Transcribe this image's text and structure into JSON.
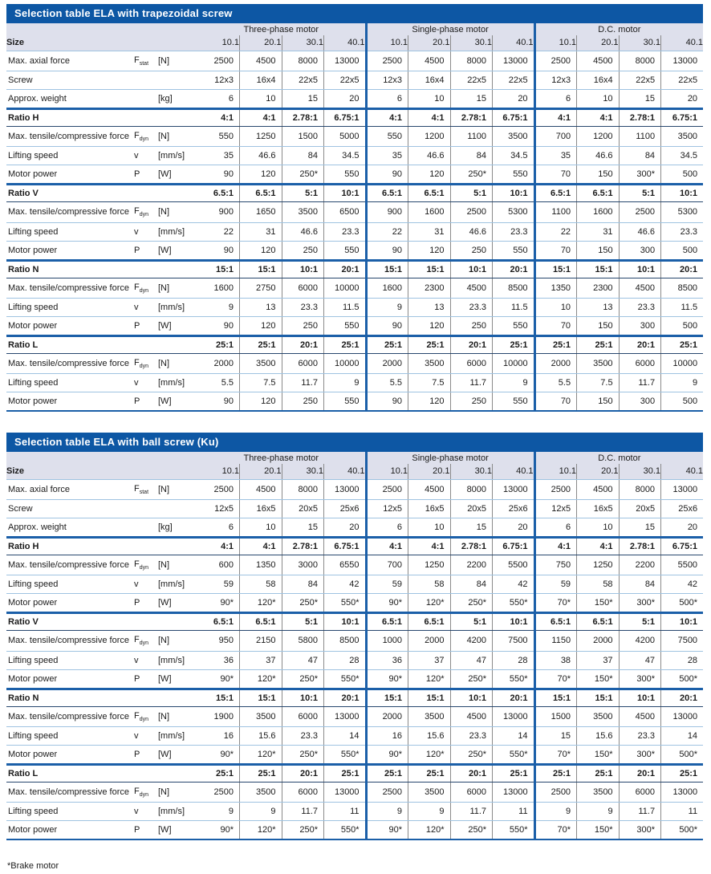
{
  "colors": {
    "title_bar": "#0d57a4",
    "header_band": "#dee0ec",
    "group_separator": "#1b5fa8",
    "row_line": "#9fc3e1",
    "ratio_line": "#27476e",
    "text": "#1b1b1b"
  },
  "footnote": "*Brake motor",
  "size_label": "Size",
  "tables": [
    {
      "title": "Selection table ELA with trapezoidal screw",
      "groups": [
        "Three-phase motor",
        "Single-phase motor",
        "D.C. motor"
      ],
      "sizes": [
        "10.1",
        "20.1",
        "30.1",
        "40.1",
        "10.1",
        "20.1",
        "30.1",
        "40.1",
        "10.1",
        "20.1",
        "30.1",
        "40.1"
      ],
      "info_rows": [
        {
          "label": "Max. axial force",
          "sym": "F_stat",
          "unit": "[N]",
          "values": [
            "2500",
            "4500",
            "8000",
            "13000",
            "2500",
            "4500",
            "8000",
            "13000",
            "2500",
            "4500",
            "8000",
            "13000"
          ]
        },
        {
          "label": "Screw",
          "sym": "",
          "unit": "",
          "values": [
            "12x3",
            "16x4",
            "22x5",
            "22x5",
            "12x3",
            "16x4",
            "22x5",
            "22x5",
            "12x3",
            "16x4",
            "22x5",
            "22x5"
          ]
        },
        {
          "label": "Approx. weight",
          "sym": "",
          "unit": "[kg]",
          "values": [
            "6",
            "10",
            "15",
            "20",
            "6",
            "10",
            "15",
            "20",
            "6",
            "10",
            "15",
            "20"
          ]
        }
      ],
      "ratio_blocks": [
        {
          "label": "Ratio H",
          "ratios": [
            "4:1",
            "4:1",
            "2.78:1",
            "6.75:1",
            "4:1",
            "4:1",
            "2.78:1",
            "6.75:1",
            "4:1",
            "4:1",
            "2.78:1",
            "6.75:1"
          ],
          "rows": [
            {
              "label": "Max. tensile/compressive force",
              "sym": "F_dyn",
              "unit": "[N]",
              "values": [
                "550",
                "1250",
                "1500",
                "5000",
                "550",
                "1200",
                "1100",
                "3500",
                "700",
                "1200",
                "1100",
                "3500"
              ]
            },
            {
              "label": "Lifting speed",
              "sym": "v",
              "unit": "[mm/s]",
              "values": [
                "35",
                "46.6",
                "84",
                "34.5",
                "35",
                "46.6",
                "84",
                "34.5",
                "35",
                "46.6",
                "84",
                "34.5"
              ]
            },
            {
              "label": "Motor power",
              "sym": "P",
              "unit": "[W]",
              "values": [
                "90",
                "120",
                "250*",
                "550",
                "90",
                "120",
                "250*",
                "550",
                "70",
                "150",
                "300*",
                "500"
              ]
            }
          ]
        },
        {
          "label": "Ratio V",
          "ratios": [
            "6.5:1",
            "6.5:1",
            "5:1",
            "10:1",
            "6.5:1",
            "6.5:1",
            "5:1",
            "10:1",
            "6.5:1",
            "6.5:1",
            "5:1",
            "10:1"
          ],
          "rows": [
            {
              "label": "Max. tensile/compressive force",
              "sym": "F_dyn",
              "unit": "[N]",
              "values": [
                "900",
                "1650",
                "3500",
                "6500",
                "900",
                "1600",
                "2500",
                "5300",
                "1100",
                "1600",
                "2500",
                "5300"
              ]
            },
            {
              "label": "Lifting speed",
              "sym": "v",
              "unit": "[mm/s]",
              "values": [
                "22",
                "31",
                "46.6",
                "23.3",
                "22",
                "31",
                "46.6",
                "23.3",
                "22",
                "31",
                "46.6",
                "23.3"
              ]
            },
            {
              "label": "Motor power",
              "sym": "P",
              "unit": "[W]",
              "values": [
                "90",
                "120",
                "250",
                "550",
                "90",
                "120",
                "250",
                "550",
                "70",
                "150",
                "300",
                "500"
              ]
            }
          ]
        },
        {
          "label": "Ratio N",
          "ratios": [
            "15:1",
            "15:1",
            "10:1",
            "20:1",
            "15:1",
            "15:1",
            "10:1",
            "20:1",
            "15:1",
            "15:1",
            "10:1",
            "20:1"
          ],
          "rows": [
            {
              "label": "Max. tensile/compressive force",
              "sym": "F_dyn",
              "unit": "[N]",
              "values": [
                "1600",
                "2750",
                "6000",
                "10000",
                "1600",
                "2300",
                "4500",
                "8500",
                "1350",
                "2300",
                "4500",
                "8500"
              ]
            },
            {
              "label": "Lifting speed",
              "sym": "v",
              "unit": "[mm/s]",
              "values": [
                "9",
                "13",
                "23.3",
                "11.5",
                "9",
                "13",
                "23.3",
                "11.5",
                "10",
                "13",
                "23.3",
                "11.5"
              ]
            },
            {
              "label": "Motor power",
              "sym": "P",
              "unit": "[W]",
              "values": [
                "90",
                "120",
                "250",
                "550",
                "90",
                "120",
                "250",
                "550",
                "70",
                "150",
                "300",
                "500"
              ]
            }
          ]
        },
        {
          "label": "Ratio L",
          "ratios": [
            "25:1",
            "25:1",
            "20:1",
            "25:1",
            "25:1",
            "25:1",
            "20:1",
            "25:1",
            "25:1",
            "25:1",
            "20:1",
            "25:1"
          ],
          "rows": [
            {
              "label": "Max. tensile/compressive force",
              "sym": "F_dyn",
              "unit": "[N]",
              "values": [
                "2000",
                "3500",
                "6000",
                "10000",
                "2000",
                "3500",
                "6000",
                "10000",
                "2000",
                "3500",
                "6000",
                "10000"
              ]
            },
            {
              "label": "Lifting speed",
              "sym": "v",
              "unit": "[mm/s]",
              "values": [
                "5.5",
                "7.5",
                "11.7",
                "9",
                "5.5",
                "7.5",
                "11.7",
                "9",
                "5.5",
                "7.5",
                "11.7",
                "9"
              ]
            },
            {
              "label": "Motor power",
              "sym": "P",
              "unit": "[W]",
              "values": [
                "90",
                "120",
                "250",
                "550",
                "90",
                "120",
                "250",
                "550",
                "70",
                "150",
                "300",
                "500"
              ]
            }
          ]
        }
      ]
    },
    {
      "title": "Selection table ELA with ball screw (Ku)",
      "groups": [
        "Three-phase motor",
        "Single-phase motor",
        "D.C. motor"
      ],
      "sizes": [
        "10.1",
        "20.1",
        "30.1",
        "40.1",
        "10.1",
        "20.1",
        "30.1",
        "40.1",
        "10.1",
        "20.1",
        "30.1",
        "40.1"
      ],
      "info_rows": [
        {
          "label": "Max. axial force",
          "sym": "F_stat",
          "unit": "[N]",
          "values": [
            "2500",
            "4500",
            "8000",
            "13000",
            "2500",
            "4500",
            "8000",
            "13000",
            "2500",
            "4500",
            "8000",
            "13000"
          ]
        },
        {
          "label": "Screw",
          "sym": "",
          "unit": "",
          "values": [
            "12x5",
            "16x5",
            "20x5",
            "25x6",
            "12x5",
            "16x5",
            "20x5",
            "25x6",
            "12x5",
            "16x5",
            "20x5",
            "25x6"
          ]
        },
        {
          "label": "Approx. weight",
          "sym": "",
          "unit": "[kg]",
          "values": [
            "6",
            "10",
            "15",
            "20",
            "6",
            "10",
            "15",
            "20",
            "6",
            "10",
            "15",
            "20"
          ]
        }
      ],
      "ratio_blocks": [
        {
          "label": "Ratio H",
          "ratios": [
            "4:1",
            "4:1",
            "2.78:1",
            "6.75:1",
            "4:1",
            "4:1",
            "2.78:1",
            "6.75:1",
            "4:1",
            "4:1",
            "2.78:1",
            "6.75:1"
          ],
          "rows": [
            {
              "label": "Max. tensile/compressive force",
              "sym": "F_dyn",
              "unit": "[N]",
              "values": [
                "600",
                "1350",
                "3000",
                "6550",
                "700",
                "1250",
                "2200",
                "5500",
                "750",
                "1250",
                "2200",
                "5500"
              ]
            },
            {
              "label": "Lifting speed",
              "sym": "v",
              "unit": "[mm/s]",
              "values": [
                "59",
                "58",
                "84",
                "42",
                "59",
                "58",
                "84",
                "42",
                "59",
                "58",
                "84",
                "42"
              ]
            },
            {
              "label": "Motor power",
              "sym": "P",
              "unit": "[W]",
              "values": [
                "90*",
                "120*",
                "250*",
                "550*",
                "90*",
                "120*",
                "250*",
                "550*",
                "70*",
                "150*",
                "300*",
                "500*"
              ]
            }
          ]
        },
        {
          "label": "Ratio V",
          "ratios": [
            "6.5:1",
            "6.5:1",
            "5:1",
            "10:1",
            "6.5:1",
            "6.5:1",
            "5:1",
            "10:1",
            "6.5:1",
            "6.5:1",
            "5:1",
            "10:1"
          ],
          "rows": [
            {
              "label": "Max. tensile/compressive force",
              "sym": "F_dyn",
              "unit": "[N]",
              "values": [
                "950",
                "2150",
                "5800",
                "8500",
                "1000",
                "2000",
                "4200",
                "7500",
                "1150",
                "2000",
                "4200",
                "7500"
              ]
            },
            {
              "label": "Lifting speed",
              "sym": "v",
              "unit": "[mm/s]",
              "values": [
                "36",
                "37",
                "47",
                "28",
                "36",
                "37",
                "47",
                "28",
                "38",
                "37",
                "47",
                "28"
              ]
            },
            {
              "label": "Motor power",
              "sym": "P",
              "unit": "[W]",
              "values": [
                "90*",
                "120*",
                "250*",
                "550*",
                "90*",
                "120*",
                "250*",
                "550*",
                "70*",
                "150*",
                "300*",
                "500*"
              ]
            }
          ]
        },
        {
          "label": "Ratio N",
          "ratios": [
            "15:1",
            "15:1",
            "10:1",
            "20:1",
            "15:1",
            "15:1",
            "10:1",
            "20:1",
            "15:1",
            "15:1",
            "10:1",
            "20:1"
          ],
          "rows": [
            {
              "label": "Max. tensile/compressive force",
              "sym": "F_dyn",
              "unit": "[N]",
              "values": [
                "1900",
                "3500",
                "6000",
                "13000",
                "2000",
                "3500",
                "4500",
                "13000",
                "1500",
                "3500",
                "4500",
                "13000"
              ]
            },
            {
              "label": "Lifting speed",
              "sym": "v",
              "unit": "[mm/s]",
              "values": [
                "16",
                "15.6",
                "23.3",
                "14",
                "16",
                "15.6",
                "23.3",
                "14",
                "15",
                "15.6",
                "23.3",
                "14"
              ]
            },
            {
              "label": "Motor power",
              "sym": "P",
              "unit": "[W]",
              "values": [
                "90*",
                "120*",
                "250*",
                "550*",
                "90*",
                "120*",
                "250*",
                "550*",
                "70*",
                "150*",
                "300*",
                "500*"
              ]
            }
          ]
        },
        {
          "label": "Ratio L",
          "ratios": [
            "25:1",
            "25:1",
            "20:1",
            "25:1",
            "25:1",
            "25:1",
            "20:1",
            "25:1",
            "25:1",
            "25:1",
            "20:1",
            "25:1"
          ],
          "rows": [
            {
              "label": "Max. tensile/compressive force",
              "sym": "F_dyn",
              "unit": "[N]",
              "values": [
                "2500",
                "3500",
                "6000",
                "13000",
                "2500",
                "3500",
                "6000",
                "13000",
                "2500",
                "3500",
                "6000",
                "13000"
              ]
            },
            {
              "label": "Lifting speed",
              "sym": "v",
              "unit": "[mm/s]",
              "values": [
                "9",
                "9",
                "11.7",
                "11",
                "9",
                "9",
                "11.7",
                "11",
                "9",
                "9",
                "11.7",
                "11"
              ]
            },
            {
              "label": "Motor power",
              "sym": "P",
              "unit": "[W]",
              "values": [
                "90*",
                "120*",
                "250*",
                "550*",
                "90*",
                "120*",
                "250*",
                "550*",
                "70*",
                "150*",
                "300*",
                "500*"
              ]
            }
          ]
        }
      ]
    }
  ]
}
